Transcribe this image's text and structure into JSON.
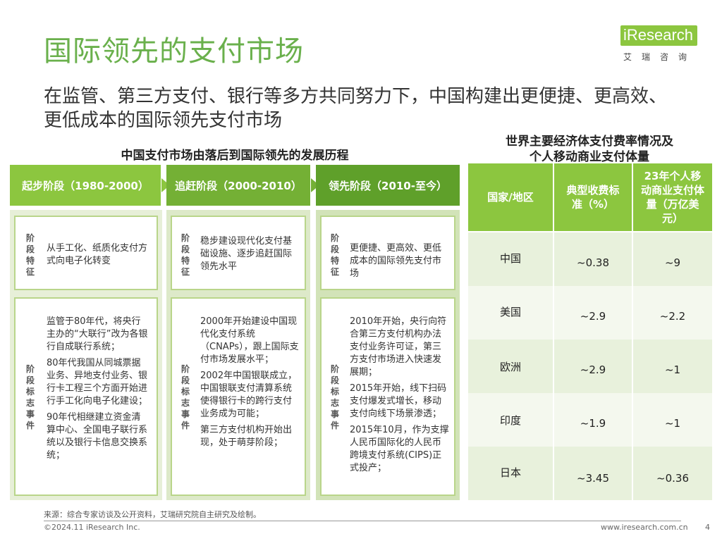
{
  "header": {
    "title": "国际领先的支付市场",
    "subtitle": "在监管、第三方支付、银行等多方共同努力下，中国构建出更便捷、更高效、更低成本的国际领先支付市场",
    "logo_text": "iResearch",
    "logo_sub": "艾瑞咨询"
  },
  "left_section": {
    "heading": "中国支付市场由落后到国际领先的发展历程",
    "stages": [
      {
        "title": "起步阶段（1980-2000）",
        "feature_label": "阶段特征",
        "feature": "从手工化、纸质化支付方式向电子化转变",
        "events_label": "阶段标志事件",
        "events": [
          "监管于80年代，将央行主办的“大联行”改为各银行自成联行系统；",
          "80年代我国从同城票据业务、异地支付业务、银行卡工程三个方面开始进行手工化向电子化建设；",
          "90年代相继建立资金清算中心、全国电子联行系统以及银行卡信息交换系统；"
        ]
      },
      {
        "title": "追赶阶段（2000-2010）",
        "feature_label": "阶段特征",
        "feature": "稳步建设现代化支付基础设施、逐步追赶国际领先水平",
        "events_label": "阶段标志事件",
        "events": [
          "2000年开始建设中国现代化支付系统（CNAPs），跟上国际支付市场发展水平；",
          "2002年中国银联成立，中国银联支付清算系统使得银行卡的跨行支付业务成为可能；",
          "第三方支付机构开始出现，处于萌芽阶段；"
        ]
      },
      {
        "title": "领先阶段（2010-至今）",
        "feature_label": "阶段特征",
        "feature": "更便捷、更高效、更低成本的国际领先支付市场",
        "events_label": "阶段标志事件",
        "events": [
          "2010年开始，央行向符合第三方支付机构办法支付业务许可证，第三方支付市场进入快速发展期；",
          "2015年开始，线下扫码支付爆发式增长，移动支付向线下场景渗透；",
          "2015年10月，作为支撑人民币国际化的人民币跨境支付系统(CIPS)正式投产；"
        ]
      }
    ]
  },
  "right_section": {
    "heading_line1": "世界主要经济体支付费率情况及",
    "heading_line2": "个人移动商业支付体量",
    "columns": [
      "国家/地区",
      "典型收费标准（%）",
      "23年个人移动商业支付体量（万亿美元）"
    ],
    "rows": [
      {
        "country": "中国",
        "fee": "~0.38",
        "volume": "~9"
      },
      {
        "country": "美国",
        "fee": "~2.9",
        "volume": "~2.2"
      },
      {
        "country": "欧洲",
        "fee": "~2.9",
        "volume": "~1"
      },
      {
        "country": "印度",
        "fee": "~1.9",
        "volume": "~1"
      },
      {
        "country": "日本",
        "fee": "~3.45",
        "volume": "~0.36"
      }
    ]
  },
  "footer": {
    "source": "来源：综合专家访谈及公开资料，艾瑞研究院自主研究及绘制。",
    "copyright": "©2024.11 iResearch Inc.",
    "url": "www.iresearch.com.cn",
    "page": "4"
  },
  "colors": {
    "accent": "#8cc63f",
    "title": "#6ab04c"
  }
}
